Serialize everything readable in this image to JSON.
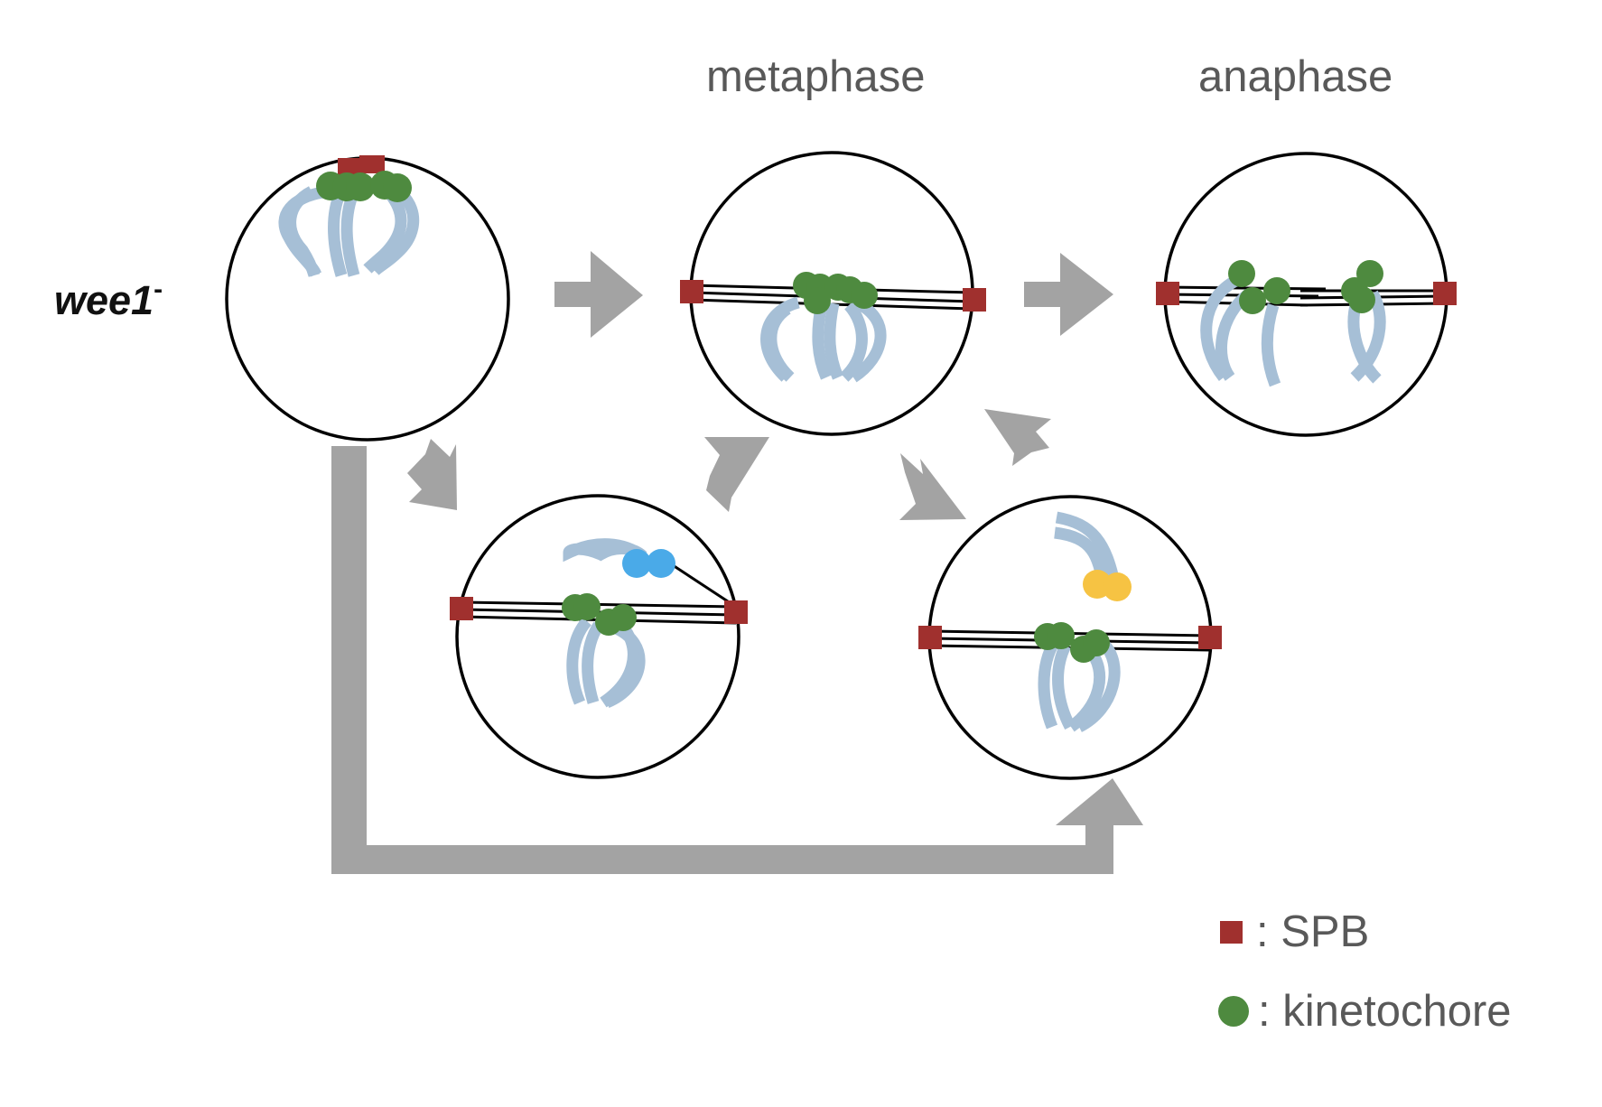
{
  "labels": {
    "metaphase": "metaphase",
    "anaphase": "anaphase",
    "strain": "wee1",
    "strain_sup": "-"
  },
  "legend": {
    "spb": {
      "symbol": "square",
      "color": "#a0302e",
      "text": ": SPB"
    },
    "kinetochore": {
      "symbol": "circle",
      "color": "#4e8a3f",
      "text": ": kinetochore"
    }
  },
  "colors": {
    "arrow": "#a3a3a3",
    "chromosome": "#a6bfd6",
    "kinetochore": "#4e8a3f",
    "spb": "#a0302e",
    "kinetochore_blue": "#4aaae8",
    "kinetochore_yellow": "#f6c343",
    "outline": "#000000"
  },
  "diagram": {
    "cells": [
      "initial",
      "metaphase",
      "anaphase",
      "merotelic-intermediate",
      "syntelic-intermediate"
    ],
    "arrows": [
      "initial-to-metaphase",
      "metaphase-to-anaphase",
      "initial-to-intermediate-1",
      "intermediate-1-to-metaphase",
      "metaphase-to-intermediate-2",
      "intermediate-2-to-metaphase",
      "initial-to-intermediate-2-bypass"
    ]
  }
}
